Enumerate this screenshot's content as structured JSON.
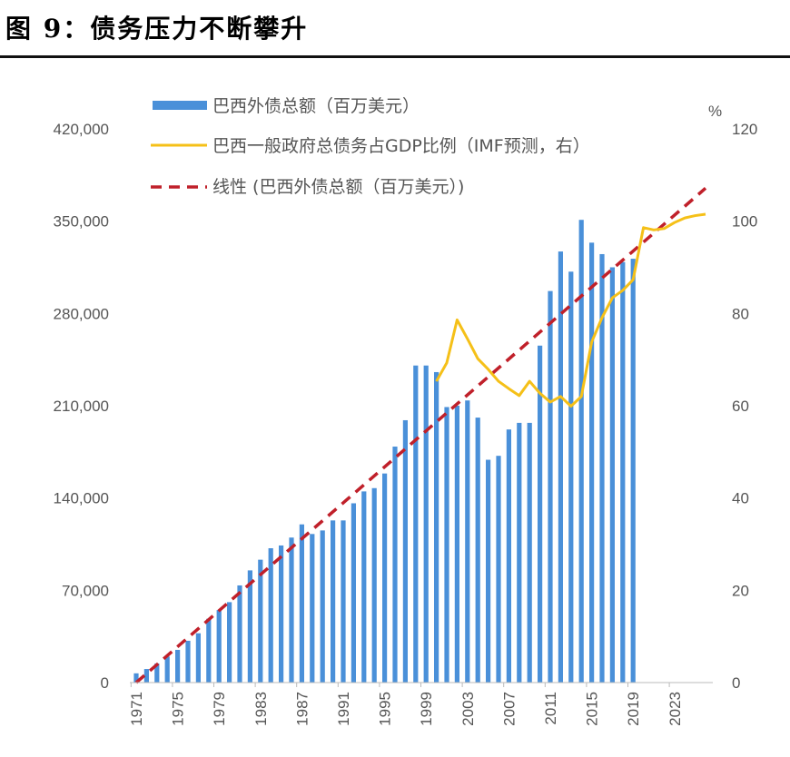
{
  "title": "图 9：债务压力不断攀升",
  "chart_data": {
    "type": "bar+line",
    "title": "",
    "right_axis_unit": "%",
    "x_ticks": [
      "1971",
      "1975",
      "1979",
      "1983",
      "1987",
      "1991",
      "1995",
      "1999",
      "2003",
      "2007",
      "2011",
      "2015",
      "2019",
      "2023"
    ],
    "left_axis": {
      "ylim": [
        0,
        420000
      ],
      "ticks": [
        "0",
        "70,000",
        "140,000",
        "210,000",
        "280,000",
        "350,000",
        "420,000"
      ],
      "tick_values": [
        0,
        70000,
        140000,
        210000,
        280000,
        350000,
        420000
      ]
    },
    "right_axis": {
      "ylim": [
        0,
        120
      ],
      "ticks": [
        "0",
        "20",
        "40",
        "60",
        "80",
        "100",
        "120"
      ],
      "tick_values": [
        0,
        20,
        40,
        60,
        80,
        100,
        120
      ]
    },
    "legend_position": "top",
    "grid": false,
    "series": [
      {
        "name": "巴西外债总额（百万美元）",
        "type": "bar",
        "axis": "left",
        "color": "#4a90d9",
        "x": [
          1971,
          1972,
          1973,
          1974,
          1975,
          1976,
          1977,
          1978,
          1979,
          1980,
          1981,
          1982,
          1983,
          1984,
          1985,
          1986,
          1987,
          1988,
          1989,
          1990,
          1991,
          1992,
          1993,
          1994,
          1995,
          1996,
          1997,
          1998,
          1999,
          2000,
          2001,
          2002,
          2003,
          2004,
          2005,
          2006,
          2007,
          2008,
          2009,
          2010,
          2011,
          2012,
          2013,
          2014,
          2015,
          2016,
          2017,
          2018,
          2019
        ],
        "values": [
          7000,
          10300,
          14500,
          19800,
          24800,
          31700,
          37400,
          48400,
          55000,
          61000,
          73700,
          85100,
          93200,
          101900,
          104000,
          110000,
          120000,
          112700,
          115400,
          123000,
          123000,
          136000,
          145000,
          147500,
          158600,
          179000,
          199000,
          240500,
          240500,
          235500,
          209000,
          210000,
          214000,
          201000,
          169000,
          172000,
          192000,
          197000,
          197000,
          255600,
          297000,
          327000,
          311700,
          351000,
          333700,
          325000,
          315000,
          319000,
          321500
        ]
      },
      {
        "name": "巴西一般政府总债务占GDP比例（IMF预测，右）",
        "type": "line",
        "axis": "right",
        "color": "#f5c018",
        "x": [
          2000,
          2001,
          2002,
          2003,
          2004,
          2005,
          2006,
          2007,
          2008,
          2009,
          2010,
          2011,
          2012,
          2013,
          2014,
          2015,
          2016,
          2017,
          2018,
          2019,
          2020,
          2021,
          2022,
          2023,
          2024,
          2025,
          2026
        ],
        "values": [
          65.3,
          69.3,
          78.6,
          74.5,
          70.2,
          67.9,
          65.3,
          63.7,
          62.2,
          65.3,
          62.7,
          60.8,
          62.0,
          59.9,
          62.0,
          73.8,
          79.1,
          83.4,
          85.0,
          87.3,
          98.6,
          98.1,
          98.4,
          99.7,
          100.7,
          101.2,
          101.5
        ]
      },
      {
        "name": "线性 (巴西外债总额（百万美元）)",
        "type": "trendline",
        "axis": "left",
        "color": "#c0202a",
        "dash": true,
        "x": [
          1971,
          2026
        ],
        "values": [
          0,
          375000
        ]
      }
    ]
  }
}
